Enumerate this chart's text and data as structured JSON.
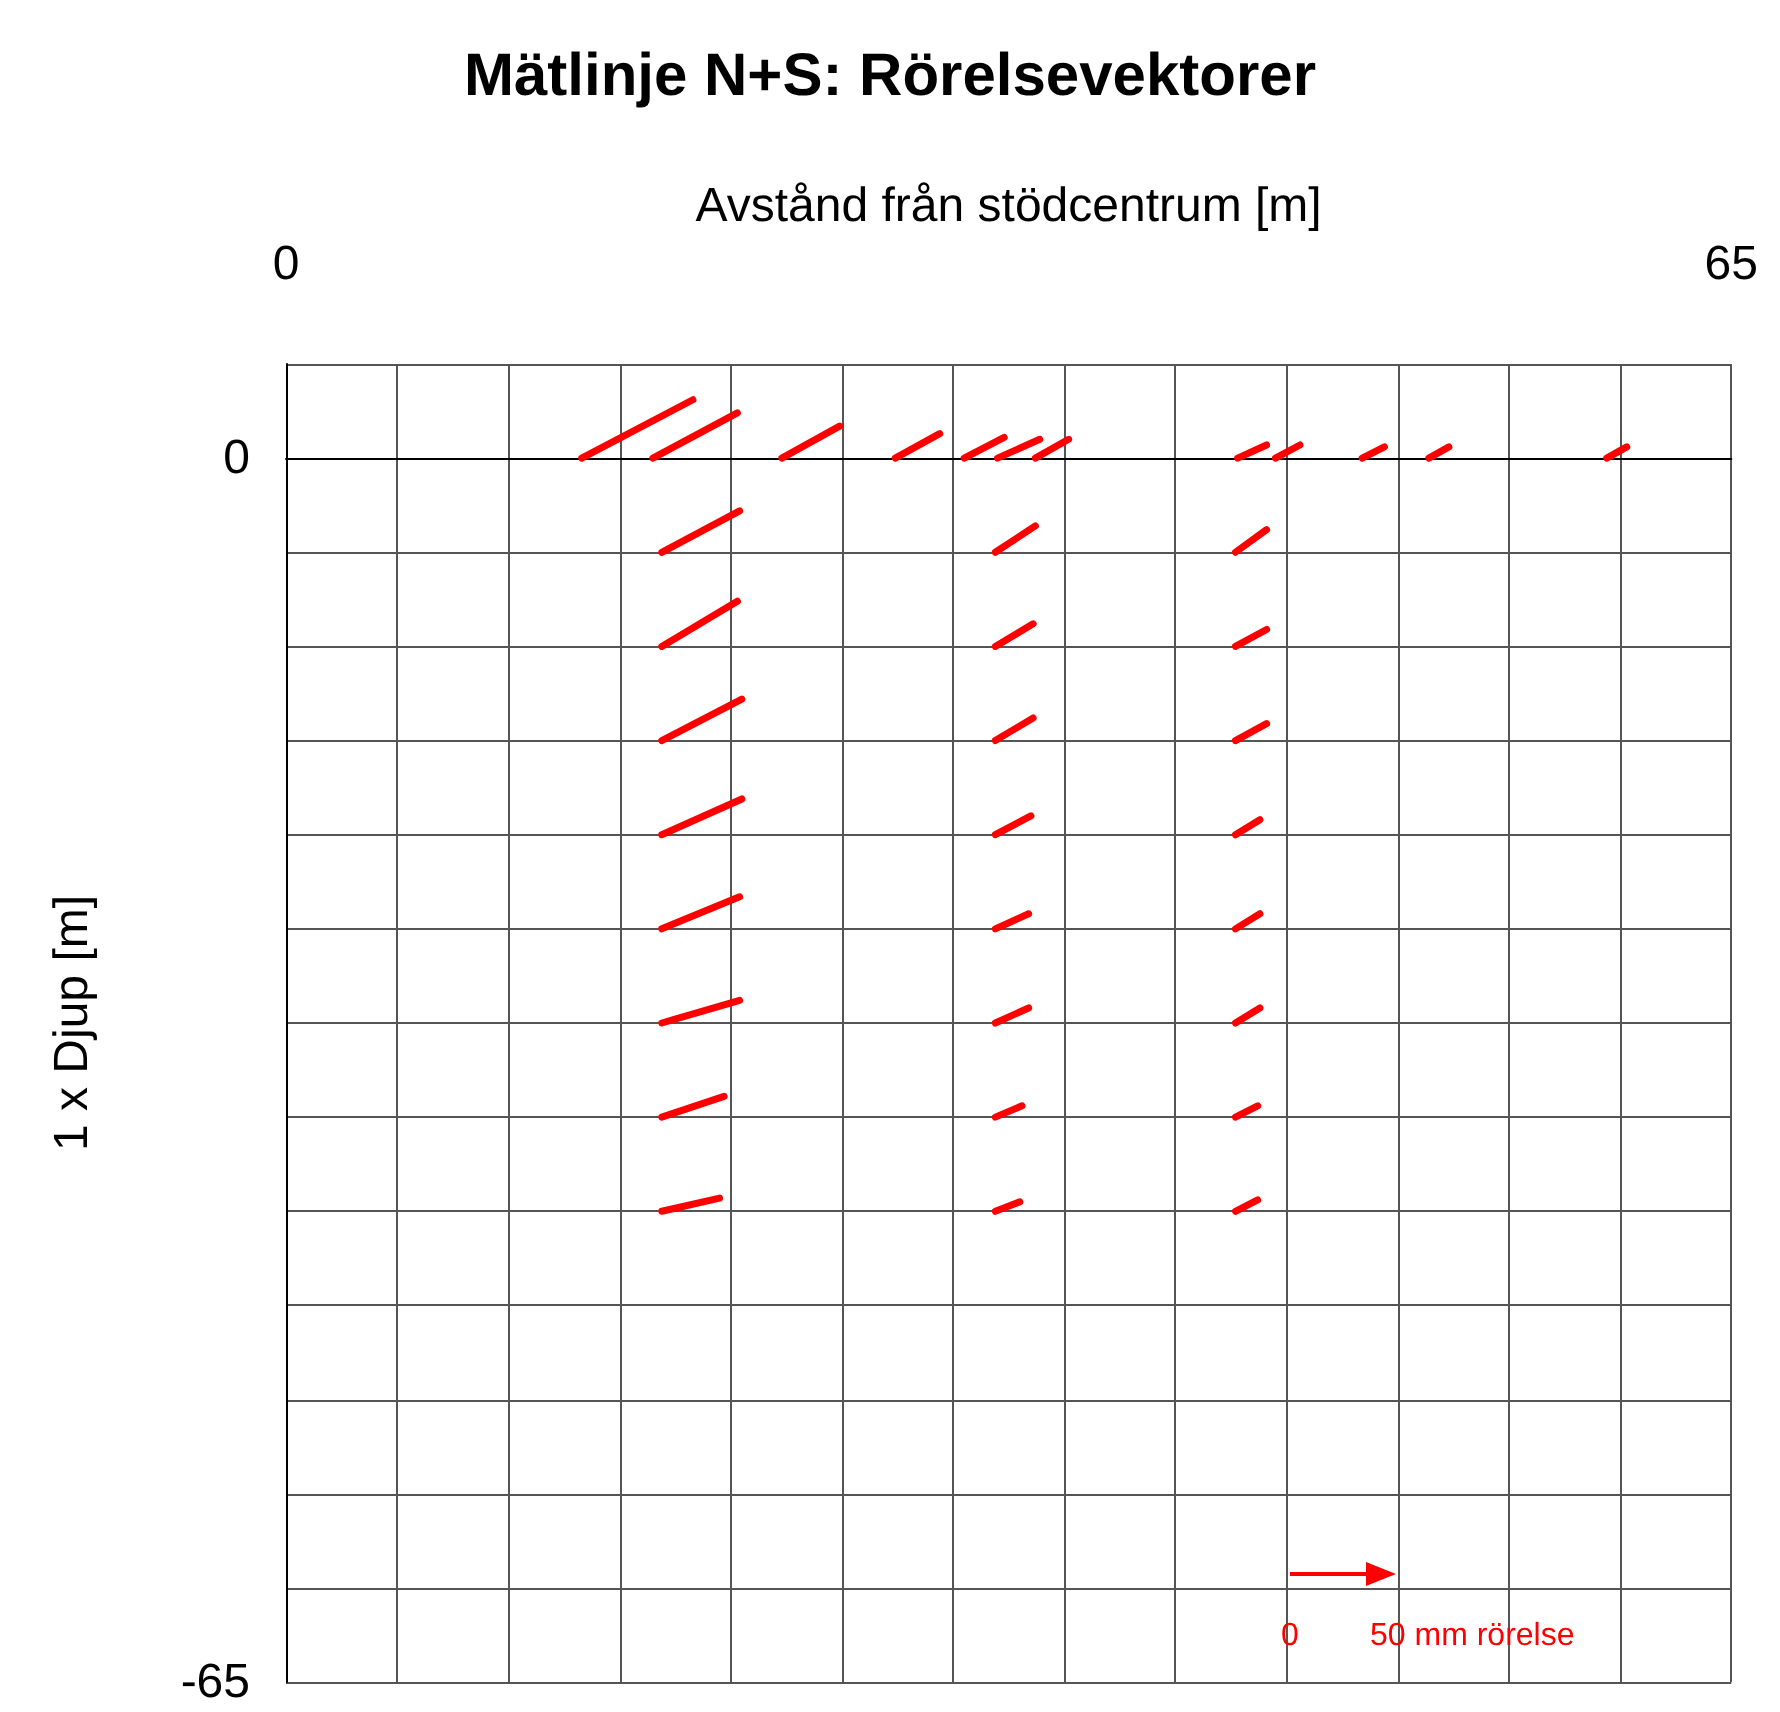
{
  "chart_data": {
    "type": "line",
    "title": "Mätlinje N+S: Rörelsevektorer",
    "xlabel": "Avstånd från stödcentrum [m]",
    "ylabel": "1 x Djup [m]",
    "xlim": [
      0,
      65
    ],
    "xticks": [
      0,
      {
        "value": 5,
        "label": null
      },
      {
        "value": 10,
        "label": null
      },
      {
        "value": 15,
        "label": null
      },
      {
        "value": 20,
        "label": null
      },
      {
        "value": 25,
        "label": null
      },
      {
        "value": 30,
        "label": null
      },
      {
        "value": 35,
        "label": null
      },
      {
        "value": 40,
        "label": null
      },
      {
        "value": 45,
        "label": null
      },
      {
        "value": 50,
        "label": null
      },
      {
        "value": 55,
        "label": null
      },
      {
        "value": 60,
        "label": null
      },
      65
    ],
    "ylim": [
      -65,
      5
    ],
    "yticks": [
      -65,
      {
        "value": -60,
        "label": null
      },
      {
        "value": -55,
        "label": null
      },
      {
        "value": -50,
        "label": null
      },
      {
        "value": -45,
        "label": null
      },
      {
        "value": -40,
        "label": null
      },
      {
        "value": -35,
        "label": null
      },
      {
        "value": -30,
        "label": null
      },
      {
        "value": -25,
        "label": null
      },
      {
        "value": -20,
        "label": null
      },
      {
        "value": -15,
        "label": null
      },
      {
        "value": -10,
        "label": null
      },
      {
        "value": -5,
        "label": null
      },
      0,
      {
        "value": 5,
        "label": null
      }
    ],
    "grid": true,
    "line_style": "solid",
    "annotations": [
      "0",
      "50 mm rörelse"
    ],
    "series": [
      {
        "color": "#ff0000",
        "x": [
          13.3,
          18.3
        ],
        "values": [
          0,
          3.1
        ]
      },
      {
        "color": "#ff0000",
        "x": [
          16.5,
          20.3
        ],
        "values": [
          0,
          2.4
        ]
      },
      {
        "color": "#ff0000",
        "x": [
          22.3,
          24.9
        ],
        "values": [
          0,
          1.7
        ]
      },
      {
        "color": "#ff0000",
        "x": [
          27.4,
          29.4
        ],
        "values": [
          0,
          1.3
        ]
      },
      {
        "color": "#ff0000",
        "x": [
          30.5,
          32.3
        ],
        "values": [
          0,
          1.1
        ]
      },
      {
        "color": "#ff0000",
        "x": [
          32.0,
          33.9
        ],
        "values": [
          0,
          1.0
        ]
      },
      {
        "color": "#ff0000",
        "x": [
          33.7,
          35.2
        ],
        "values": [
          0,
          1.0
        ]
      },
      {
        "color": "#ff0000",
        "x": [
          42.8,
          44.1
        ],
        "values": [
          0,
          0.7
        ]
      },
      {
        "color": "#ff0000",
        "x": [
          44.5,
          45.6
        ],
        "values": [
          0,
          0.7
        ]
      },
      {
        "color": "#ff0000",
        "x": [
          48.4,
          49.4
        ],
        "values": [
          0,
          0.6
        ]
      },
      {
        "color": "#ff0000",
        "x": [
          51.4,
          52.3
        ],
        "values": [
          0,
          0.6
        ]
      },
      {
        "color": "#ff0000",
        "x": [
          59.4,
          60.3
        ],
        "values": [
          0,
          0.6
        ]
      },
      {
        "color": "#ff0000",
        "x": [
          16.9,
          20.4
        ],
        "values": [
          -5,
          -2.8
        ]
      },
      {
        "color": "#ff0000",
        "x": [
          16.9,
          20.3
        ],
        "values": [
          -10,
          -7.6
        ]
      },
      {
        "color": "#ff0000",
        "x": [
          16.9,
          20.5
        ],
        "values": [
          -15,
          -12.8
        ]
      },
      {
        "color": "#ff0000",
        "x": [
          16.9,
          20.5
        ],
        "values": [
          -20,
          -18.1
        ]
      },
      {
        "color": "#ff0000",
        "x": [
          16.9,
          20.4
        ],
        "values": [
          -25,
          -23.3
        ]
      },
      {
        "color": "#ff0000",
        "x": [
          16.9,
          20.4
        ],
        "values": [
          -30,
          -28.8
        ]
      },
      {
        "color": "#ff0000",
        "x": [
          16.9,
          19.7
        ],
        "values": [
          -35,
          -33.9
        ]
      },
      {
        "color": "#ff0000",
        "x": [
          16.9,
          19.5
        ],
        "values": [
          -40,
          -39.3
        ]
      },
      {
        "color": "#ff0000",
        "x": [
          31.9,
          33.7
        ],
        "values": [
          -5,
          -3.6
        ]
      },
      {
        "color": "#ff0000",
        "x": [
          31.9,
          33.6
        ],
        "values": [
          -10,
          -8.8
        ]
      },
      {
        "color": "#ff0000",
        "x": [
          31.9,
          33.6
        ],
        "values": [
          -15,
          -13.8
        ]
      },
      {
        "color": "#ff0000",
        "x": [
          31.9,
          33.5
        ],
        "values": [
          -20,
          -19.0
        ]
      },
      {
        "color": "#ff0000",
        "x": [
          31.9,
          33.4
        ],
        "values": [
          -25,
          -24.2
        ]
      },
      {
        "color": "#ff0000",
        "x": [
          31.9,
          33.4
        ],
        "values": [
          -30,
          -29.2
        ]
      },
      {
        "color": "#ff0000",
        "x": [
          31.9,
          33.1
        ],
        "values": [
          -35,
          -34.4
        ]
      },
      {
        "color": "#ff0000",
        "x": [
          31.9,
          33.0
        ],
        "values": [
          -40,
          -39.5
        ]
      },
      {
        "color": "#ff0000",
        "x": [
          42.7,
          44.1
        ],
        "values": [
          -5,
          -3.8
        ]
      },
      {
        "color": "#ff0000",
        "x": [
          42.7,
          44.1
        ],
        "values": [
          -10,
          -9.1
        ]
      },
      {
        "color": "#ff0000",
        "x": [
          42.7,
          44.1
        ],
        "values": [
          -15,
          -14.1
        ]
      },
      {
        "color": "#ff0000",
        "x": [
          42.7,
          43.8
        ],
        "values": [
          -20,
          -19.2
        ]
      },
      {
        "color": "#ff0000",
        "x": [
          42.7,
          43.8
        ],
        "values": [
          -25,
          -24.2
        ]
      },
      {
        "color": "#ff0000",
        "x": [
          42.7,
          43.8
        ],
        "values": [
          -30,
          -29.2
        ]
      },
      {
        "color": "#ff0000",
        "x": [
          42.7,
          43.7
        ],
        "values": [
          -35,
          -34.4
        ]
      },
      {
        "color": "#ff0000",
        "x": [
          42.7,
          43.7
        ],
        "values": [
          -40,
          -39.4
        ]
      }
    ]
  }
}
